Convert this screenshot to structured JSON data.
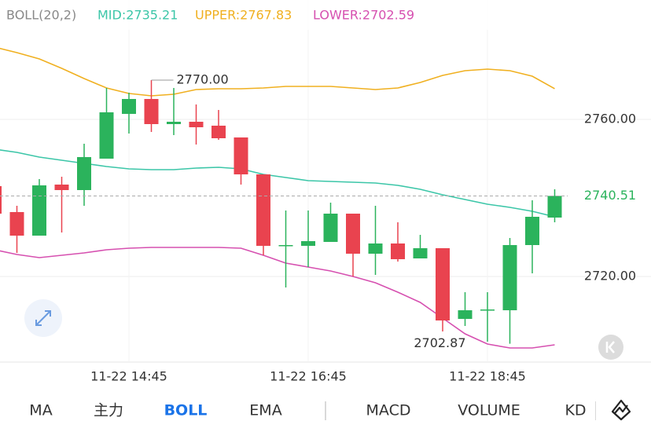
{
  "chart_data": {
    "type": "candlestick",
    "title": "BOLL(20,2)",
    "categories": [
      null,
      null,
      null,
      null,
      null,
      null,
      "11-22 14:45",
      null,
      null,
      null,
      null,
      null,
      null,
      null,
      "11-22 16:45",
      null,
      null,
      null,
      null,
      null,
      null,
      null,
      "11-22 18:45",
      null,
      null,
      null
    ],
    "open": [
      2743,
      2736.4,
      2730.4,
      2743.4,
      2742,
      2750,
      2761.4,
      2765.2,
      2758.8,
      2759.4,
      2758.4,
      2755.4,
      2746,
      2727.8,
      2727.8,
      2728.8,
      2736,
      2725.8,
      2728.4,
      2724.6,
      2727.2,
      2709.2,
      2711.4,
      2711.4,
      2728,
      2735
    ],
    "high": [
      2744,
      2738,
      2744.8,
      2745.4,
      2753.8,
      2768,
      2766.8,
      2770,
      2768,
      2763.8,
      2762.4,
      2755.4,
      2746,
      2736.8,
      2736.8,
      2738.8,
      2736,
      2738,
      2733.8,
      2730.6,
      2727.2,
      2716,
      2716,
      2729.8,
      2739.4,
      2742.2
    ],
    "low": [
      2735,
      2726,
      2730.4,
      2731.2,
      2738,
      2750,
      2756.4,
      2756.8,
      2756,
      2753.6,
      2754.8,
      2743.4,
      2725.4,
      2717.2,
      2722.4,
      2728.8,
      2720,
      2720.4,
      2723.8,
      2724.6,
      2706,
      2707.4,
      2703.4,
      2702.87,
      2720.8,
      2733.8
    ],
    "close": [
      2736,
      2730.4,
      2743.2,
      2742,
      2750.4,
      2761.8,
      2765.2,
      2758.8,
      2759.4,
      2758,
      2755.2,
      2746,
      2727.8,
      2728,
      2729,
      2736,
      2725.8,
      2728.4,
      2724.4,
      2727.2,
      2708.8,
      2711.4,
      2711.6,
      2728,
      2735.2,
      2740.51
    ],
    "up_color": "#2bb35c",
    "down_color": "#e9434f",
    "series": [
      {
        "name": "MID:2735.21",
        "color": "#3cc6a8",
        "values": [
          2752.4,
          2751.6,
          2750.4,
          2749.6,
          2748.8,
          2748,
          2747.4,
          2747.2,
          2747.2,
          2747.6,
          2747.8,
          2747.4,
          2746,
          2745.2,
          2744.4,
          2744.2,
          2744,
          2743.8,
          2743.2,
          2742.2,
          2740.8,
          2739.6,
          2738.4,
          2737.6,
          2736.6,
          2735.21
        ]
      },
      {
        "name": "UPPER:2767.83",
        "color": "#f0b020",
        "values": [
          2778.4,
          2777,
          2775.4,
          2773,
          2770.4,
          2768,
          2766.6,
          2766,
          2766.4,
          2767.6,
          2767.8,
          2767.8,
          2768,
          2768.4,
          2768.4,
          2768.4,
          2768,
          2767.6,
          2768,
          2769.4,
          2771.2,
          2772.4,
          2772.8,
          2772.4,
          2771,
          2767.83
        ]
      },
      {
        "name": "LOWER:2702.59",
        "color": "#d650b0",
        "values": [
          2726.8,
          2725.6,
          2724.8,
          2725.4,
          2726,
          2726.8,
          2727.2,
          2727.4,
          2727.4,
          2727.4,
          2727.4,
          2727.2,
          2725.4,
          2723.4,
          2722.4,
          2721.4,
          2720,
          2718.4,
          2716,
          2713.4,
          2709.4,
          2705.4,
          2702.8,
          2701.8,
          2701.8,
          2702.59
        ]
      }
    ],
    "ylim": [
      2698.4,
      2790.4
    ],
    "yticks": [
      {
        "value": 2760,
        "label": "2760.00"
      },
      {
        "value": 2720,
        "label": "2720.00"
      }
    ],
    "grid": true,
    "current_price": 2740.51,
    "annotations": [
      {
        "value": 2770,
        "label": "2770.00"
      },
      {
        "value": 2702.87,
        "label": "2702.87"
      }
    ]
  },
  "tabs": {
    "items": [
      "MA",
      "主力",
      "BOLL",
      "EMA",
      "MACD",
      "VOLUME",
      "KD"
    ],
    "active": 2
  }
}
